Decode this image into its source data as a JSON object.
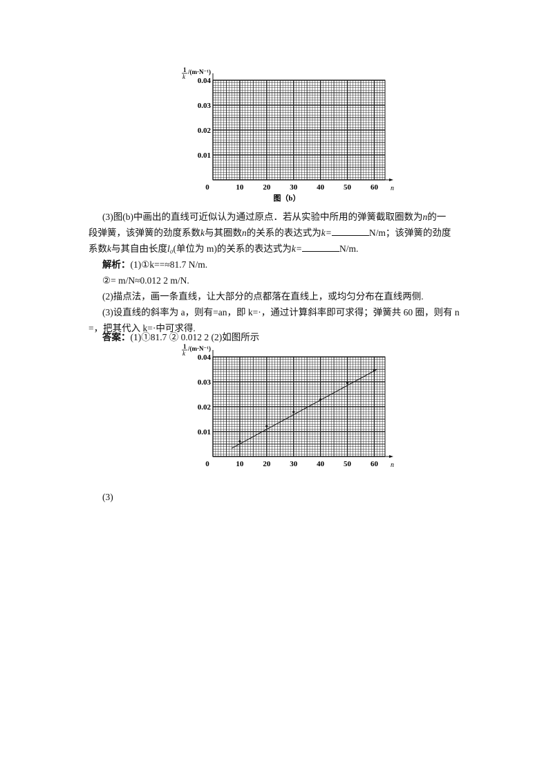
{
  "chart_data": [
    {
      "type": "scatter",
      "caption": "图（b）",
      "ylabel_num": "1",
      "ylabel_den": "k",
      "ylabel_unit": "/(m·N⁻¹)",
      "xlabel": "n",
      "xlim": [
        0,
        64
      ],
      "ylim": [
        0,
        0.04
      ],
      "xticks": [
        "0",
        "10",
        "20",
        "30",
        "40",
        "50",
        "60"
      ],
      "yticks": [
        "0.01",
        "0.02",
        "0.03",
        "0.04"
      ],
      "grid": true,
      "points": [],
      "line": null
    },
    {
      "type": "scatter",
      "ylabel_num": "1",
      "ylabel_den": "k",
      "ylabel_unit": "/(m·N⁻¹)",
      "xlabel": "n",
      "xlim": [
        0,
        64
      ],
      "ylim": [
        0,
        0.04
      ],
      "xticks": [
        "0",
        "10",
        "20",
        "30",
        "40",
        "50",
        "60"
      ],
      "yticks": [
        "0.01",
        "0.02",
        "0.03",
        "0.04"
      ],
      "grid": true,
      "points": [
        {
          "x": 10,
          "y": 0.0061
        },
        {
          "x": 20,
          "y": 0.0122
        },
        {
          "x": 30,
          "y": 0.0179
        },
        {
          "x": 40,
          "y": 0.0229
        },
        {
          "x": 50,
          "y": 0.0296
        },
        {
          "x": 60,
          "y": 0.0347
        }
      ],
      "line": {
        "x": [
          7,
          61
        ],
        "y": [
          0.0033,
          0.035
        ]
      }
    }
  ],
  "text": {
    "q3_a": "(3)图(b)中画出的直线可近似认为通过原点．若从实验中所用的弹簧截取圈数为",
    "q3_n": "n",
    "q3_b": "的一",
    "q3_c": "段弹簧，该弹簧的劲度系数",
    "q3_d": "k",
    "q3_e": "与其圈数",
    "q3_f": "n",
    "q3_g": "的关系的表达式为",
    "q3_h": "k=",
    "q3_i": "N/m；该弹簧的劲度",
    "q3_j": "系数",
    "q3_k": "k",
    "q3_l": "与其自由长度",
    "q3_m": "l₀",
    "q3_n2": "(单位为 m)的关系的表达式为",
    "q3_o": "k=",
    "q3_p": "N/m.",
    "sol_label": "解析：",
    "sol_1": "(1)①k==≈81.7  N/m.",
    "sol_2": "②=  m/N≈0.012  2  m/N.",
    "sol_3": "(2)描点法，画一条直线，让大部分的点都落在直线上，或均匀分布在直线两侧.",
    "sol_4": "(3)设直线的斜率为 a，则有=an，即 k=·，通过计算斜率即可求得；弹簧共 60 圈，则有 n",
    "sol_5": "=，把其代入 k=·中可求得.",
    "ans_label": "答案：",
    "ans_1": "(1)①81.7   ② 0.012 2   (2)如图所示",
    "ans_3": "(3)"
  }
}
